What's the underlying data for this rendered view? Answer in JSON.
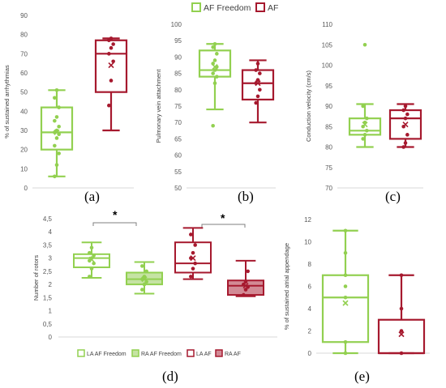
{
  "colors": {
    "green": "#92D050",
    "red": "#A6192E",
    "green_fill": "#C5E3A3",
    "red_fill": "#D28A95",
    "axis": "#D9D9D9"
  },
  "legend_top": {
    "items": [
      {
        "label": "AF Freedom",
        "color": "#92D050"
      },
      {
        "label": "AF",
        "color": "#A6192E"
      }
    ]
  },
  "legend_d": {
    "items": [
      {
        "label": "LA AF Freedom",
        "color": "#92D050",
        "filled": false
      },
      {
        "label": "RA AF Freedom",
        "color": "#92D050",
        "filled": true
      },
      {
        "label": "LA AF",
        "color": "#A6192E",
        "filled": false
      },
      {
        "label": "RA AF",
        "color": "#A6192E",
        "filled": true
      }
    ]
  },
  "chart_data": [
    {
      "panel": "(a)",
      "type": "box",
      "ylabel": "% of sustained arrhythmias",
      "ylim": [
        0,
        90
      ],
      "yticks": [
        "0",
        "10",
        "20",
        "30",
        "40",
        "50",
        "60",
        "70",
        "80",
        "90"
      ],
      "boxes": [
        {
          "name": "AF Freedom",
          "color": "green",
          "min": 6,
          "q1": 20,
          "median": 29,
          "q3": 42,
          "max": 51,
          "mean": 29,
          "points": [
            6,
            12,
            18,
            22,
            26,
            28,
            29,
            30,
            32,
            35,
            37,
            42,
            47,
            51
          ]
        },
        {
          "name": "AF",
          "color": "red",
          "min": 30,
          "q1": 50,
          "median": 70,
          "q3": 77,
          "max": 78,
          "mean": 64,
          "points": [
            43,
            56,
            66,
            70,
            73,
            75,
            77,
            78
          ]
        }
      ]
    },
    {
      "panel": "(b)",
      "type": "box",
      "ylabel": "Pulmonary vein attachment",
      "ylim": [
        50,
        100
      ],
      "yticks": [
        "50",
        "55",
        "60",
        "65",
        "70",
        "75",
        "80",
        "85",
        "90",
        "95",
        "100"
      ],
      "boxes": [
        {
          "name": "AF Freedom",
          "color": "green",
          "min": 74,
          "q1": 84,
          "median": 86,
          "q3": 92,
          "max": 94,
          "mean": 87,
          "points": [
            69,
            82,
            84,
            85,
            86,
            87,
            88,
            89,
            91,
            93,
            94
          ]
        },
        {
          "name": "AF",
          "color": "red",
          "min": 70,
          "q1": 77,
          "median": 82,
          "q3": 86,
          "max": 89,
          "mean": 82,
          "points": [
            76,
            78,
            80,
            82,
            83,
            85,
            86,
            88
          ]
        }
      ]
    },
    {
      "panel": "(c)",
      "type": "box",
      "ylabel": "Conduction velocity (cm/s)",
      "ylim": [
        70,
        110
      ],
      "yticks": [
        "70",
        "75",
        "80",
        "85",
        "90",
        "95",
        "100",
        "105",
        "110"
      ],
      "boxes": [
        {
          "name": "AF Freedom",
          "color": "green",
          "min": 80,
          "q1": 83,
          "median": 84,
          "q3": 87,
          "max": 90.5,
          "mean": 85.5,
          "points": [
            82,
            83,
            84,
            85,
            86,
            87,
            90,
            105
          ]
        },
        {
          "name": "AF",
          "color": "red",
          "min": 80,
          "q1": 82,
          "median": 87,
          "q3": 89,
          "max": 90.5,
          "mean": 85.5,
          "points": [
            80,
            81,
            83,
            85,
            87,
            88,
            89,
            90
          ]
        }
      ]
    },
    {
      "panel": "(d)",
      "type": "box",
      "ylabel": "Number of rotors",
      "ylim": [
        0,
        4.5
      ],
      "yticks": [
        "0",
        "0,5",
        "1",
        "1,5",
        "2",
        "2,5",
        "3",
        "3,5",
        "4",
        "4,5"
      ],
      "annotations": [
        "*",
        "*"
      ],
      "boxes": [
        {
          "name": "LA AF Freedom",
          "color": "green",
          "filled": false,
          "min": 2.25,
          "q1": 2.65,
          "median": 3.0,
          "q3": 3.15,
          "max": 3.6,
          "mean": 2.95,
          "points": [
            2.3,
            2.6,
            2.8,
            2.9,
            3.0,
            3.1,
            3.2,
            3.4
          ]
        },
        {
          "name": "RA AF Freedom",
          "color": "green",
          "filled": true,
          "min": 1.65,
          "q1": 2.0,
          "median": 2.2,
          "q3": 2.45,
          "max": 2.85,
          "mean": 2.2,
          "points": [
            1.8,
            2.0,
            2.1,
            2.2,
            2.3,
            2.5,
            2.7
          ]
        },
        {
          "name": "LA AF",
          "color": "red",
          "filled": false,
          "min": 2.2,
          "q1": 2.45,
          "median": 2.8,
          "q3": 3.6,
          "max": 4.15,
          "mean": 3.0,
          "points": [
            2.3,
            2.6,
            2.8,
            3.0,
            3.2,
            3.5,
            3.9
          ]
        },
        {
          "name": "RA AF",
          "color": "red",
          "filled": true,
          "min": 1.55,
          "q1": 1.6,
          "median": 1.95,
          "q3": 2.15,
          "max": 2.9,
          "mean": 1.95,
          "points": [
            1.6,
            1.8,
            1.9,
            2.0,
            2.1,
            2.5
          ]
        }
      ]
    },
    {
      "panel": "(e)",
      "type": "box",
      "ylabel": "% of sustained atrial appendage",
      "ylim": [
        0,
        12
      ],
      "yticks": [
        "0",
        "2",
        "4",
        "6",
        "8",
        "10",
        "12"
      ],
      "boxes": [
        {
          "name": "AF Freedom",
          "color": "green",
          "min": 0,
          "q1": 1,
          "median": 5,
          "q3": 7,
          "max": 11,
          "mean": 4.5,
          "points": [
            0,
            1,
            5,
            6,
            7,
            9,
            11
          ]
        },
        {
          "name": "AF",
          "color": "red",
          "min": 0,
          "q1": 0,
          "median": 0,
          "q3": 3,
          "max": 7,
          "mean": 1.7,
          "points": [
            0,
            2,
            4,
            7
          ]
        }
      ]
    }
  ]
}
